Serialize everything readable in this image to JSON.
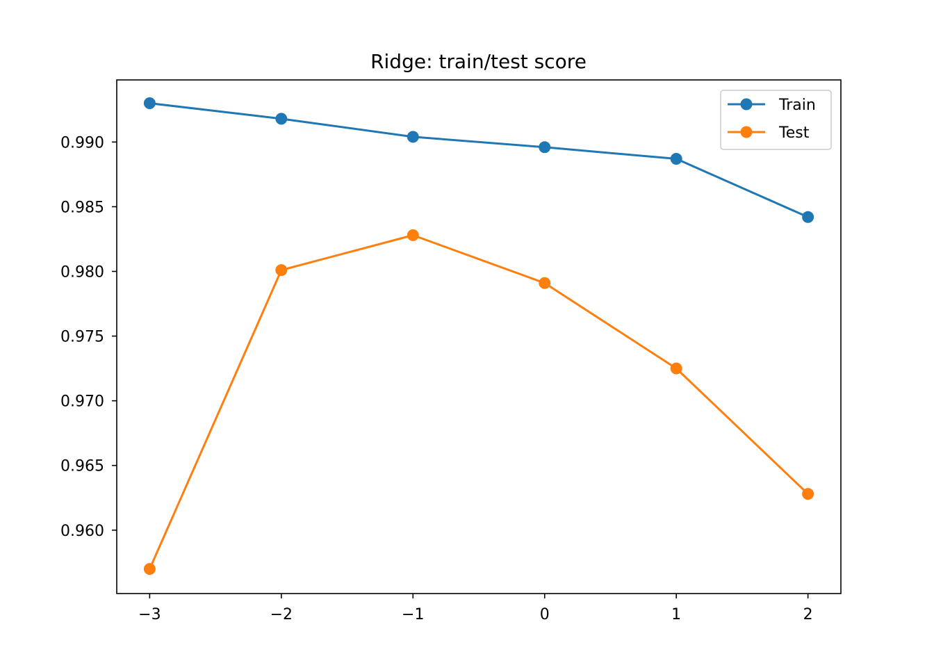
{
  "chart_data": {
    "type": "line",
    "title": "Ridge: train/test score",
    "xlabel": "",
    "ylabel": "",
    "x": [
      -3,
      -2,
      -1,
      0,
      1,
      2
    ],
    "xlim": [
      -3.25,
      2.25
    ],
    "ylim": [
      0.9551,
      0.9948
    ],
    "xticks": [
      -3,
      -2,
      -1,
      0,
      1,
      2
    ],
    "xtick_labels": [
      "−3",
      "−2",
      "−1",
      "0",
      "1",
      "2"
    ],
    "yticks": [
      0.96,
      0.965,
      0.97,
      0.975,
      0.98,
      0.985,
      0.99
    ],
    "ytick_labels": [
      "0.960",
      "0.965",
      "0.970",
      "0.975",
      "0.980",
      "0.985",
      "0.990"
    ],
    "grid": false,
    "legend_position": "top-right",
    "series": [
      {
        "name": "Train",
        "color": "#1f77b4",
        "marker": "circle",
        "values": [
          0.993,
          0.9918,
          0.9904,
          0.9896,
          0.9887,
          0.9842
        ]
      },
      {
        "name": "Test",
        "color": "#ff7f0e",
        "marker": "circle",
        "values": [
          0.957,
          0.9801,
          0.9828,
          0.9791,
          0.9725,
          0.9628
        ]
      }
    ]
  }
}
